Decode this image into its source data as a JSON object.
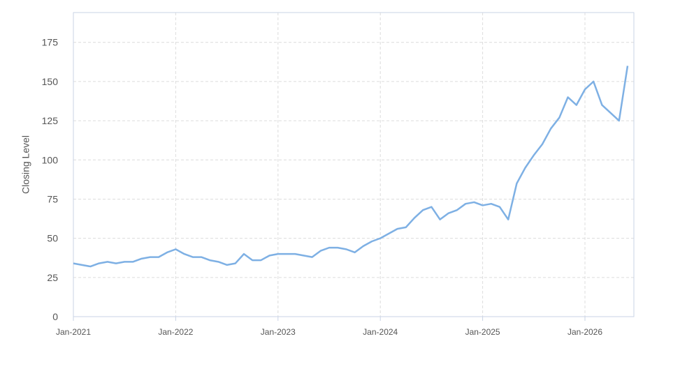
{
  "chart_data": {
    "type": "line",
    "y_label": "Closing Level",
    "x": [
      "Jan-2021",
      "Feb-2021",
      "Mar-2021",
      "Apr-2021",
      "May-2021",
      "Jun-2021",
      "Jul-2021",
      "Aug-2021",
      "Sep-2021",
      "Oct-2021",
      "Nov-2021",
      "Dec-2021",
      "Jan-2022",
      "Feb-2022",
      "Mar-2022",
      "Apr-2022",
      "May-2022",
      "Jun-2022",
      "Jul-2022",
      "Aug-2022",
      "Sep-2022",
      "Oct-2022",
      "Nov-2022",
      "Dec-2022",
      "Jan-2023",
      "Feb-2023",
      "Mar-2023",
      "Apr-2023",
      "May-2023",
      "Jun-2023",
      "Jul-2023",
      "Aug-2023",
      "Sep-2023",
      "Oct-2023",
      "Nov-2023",
      "Dec-2023",
      "Jan-2024",
      "Feb-2024",
      "Mar-2024",
      "Apr-2024",
      "May-2024",
      "Jun-2024",
      "Jul-2024",
      "Aug-2024",
      "Sep-2024",
      "Oct-2024",
      "Nov-2024",
      "Dec-2024",
      "Jan-2025",
      "Feb-2025",
      "Mar-2025",
      "Apr-2025",
      "May-2025",
      "Jun-2025",
      "Jul-2025",
      "Aug-2025",
      "Sep-2025",
      "Oct-2025",
      "Nov-2025",
      "Dec-2025",
      "Jan-2026",
      "Feb-2026",
      "Mar-2026",
      "Apr-2026",
      "May-2026",
      "Jun-2026"
    ],
    "series": [
      {
        "name": "Closing Level",
        "color": "#7eb0e4",
        "values": [
          34,
          33,
          32,
          34,
          35,
          34,
          35,
          35,
          37,
          38,
          38,
          41,
          43,
          40,
          38,
          38,
          36,
          35,
          33,
          34,
          40,
          36,
          36,
          39,
          40,
          40,
          40,
          39,
          38,
          42,
          44,
          44,
          43,
          41,
          45,
          48,
          50,
          53,
          56,
          57,
          63,
          68,
          70,
          62,
          66,
          68,
          72,
          73,
          71,
          72,
          70,
          62,
          85,
          95,
          103,
          110,
          120,
          127,
          140,
          135,
          145,
          150,
          135,
          130,
          125,
          160
        ]
      }
    ],
    "ylim": [
      0,
      194
    ],
    "yticks": [
      0,
      25,
      50,
      75,
      100,
      125,
      150,
      175
    ],
    "grid": true
  }
}
